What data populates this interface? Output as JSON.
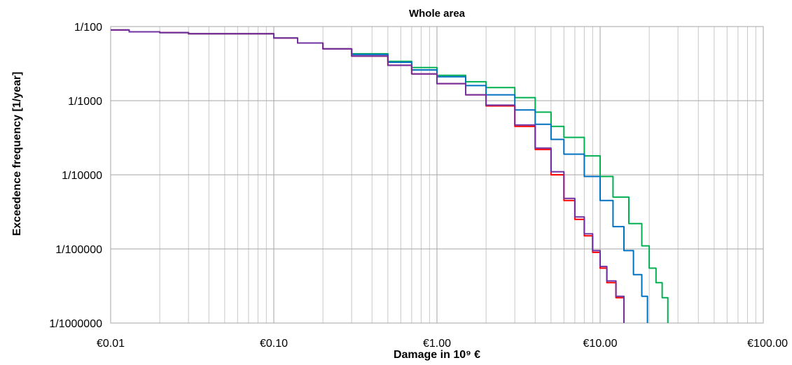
{
  "chart_data": {
    "type": "line",
    "title": "Whole area",
    "xlabel": "Damage in 10⁹ €",
    "ylabel": "Exceedence frequency [1/year]",
    "x_scale": "log",
    "y_scale": "log",
    "xlim": [
      0.01,
      100
    ],
    "ylim": [
      1e-06,
      0.01
    ],
    "x_ticks": [
      0.01,
      0.1,
      1,
      10,
      100
    ],
    "x_tick_labels": [
      "€0.01",
      "€0.10",
      "€1.00",
      "€10.00",
      "€100.00"
    ],
    "y_ticks": [
      0.01,
      0.001,
      0.0001,
      1e-05,
      1e-06
    ],
    "y_tick_labels": [
      "1/100",
      "1/1000",
      "1/10000",
      "1/100000",
      "1/1000000"
    ],
    "grid": true,
    "legend": "none",
    "series": [
      {
        "color": "#00b050",
        "points": [
          [
            0.01,
            0.009
          ],
          [
            0.013,
            0.0085
          ],
          [
            0.02,
            0.0083
          ],
          [
            0.03,
            0.008
          ],
          [
            0.05,
            0.008
          ],
          [
            0.09,
            0.008
          ],
          [
            0.1,
            0.007
          ],
          [
            0.14,
            0.006
          ],
          [
            0.2,
            0.005
          ],
          [
            0.3,
            0.0043
          ],
          [
            0.5,
            0.0034
          ],
          [
            0.7,
            0.0028
          ],
          [
            1.0,
            0.0022
          ],
          [
            1.5,
            0.0018
          ],
          [
            2.0,
            0.0015
          ],
          [
            3.0,
            0.0011
          ],
          [
            4.0,
            0.0007
          ],
          [
            5.0,
            0.00045
          ],
          [
            6.0,
            0.00032
          ],
          [
            8.0,
            0.00018
          ],
          [
            10.0,
            9.5e-05
          ],
          [
            12.0,
            5e-05
          ],
          [
            15.0,
            2.2e-05
          ],
          [
            18.0,
            1.1e-05
          ],
          [
            20.0,
            5.5e-06
          ],
          [
            22.0,
            3.5e-06
          ],
          [
            24.0,
            2.2e-06
          ],
          [
            26.0,
            1.5e-06
          ],
          [
            26.0,
            1e-06
          ]
        ]
      },
      {
        "color": "#0070c0",
        "points": [
          [
            0.01,
            0.009
          ],
          [
            0.013,
            0.0085
          ],
          [
            0.02,
            0.0083
          ],
          [
            0.03,
            0.008
          ],
          [
            0.05,
            0.008
          ],
          [
            0.09,
            0.008
          ],
          [
            0.1,
            0.007
          ],
          [
            0.14,
            0.006
          ],
          [
            0.2,
            0.005
          ],
          [
            0.3,
            0.0042
          ],
          [
            0.5,
            0.0033
          ],
          [
            0.7,
            0.0026
          ],
          [
            1.0,
            0.0021
          ],
          [
            1.5,
            0.0016
          ],
          [
            2.0,
            0.0012
          ],
          [
            3.0,
            0.00075
          ],
          [
            4.0,
            0.00048
          ],
          [
            5.0,
            0.0003
          ],
          [
            6.0,
            0.00019
          ],
          [
            8.0,
            9.5e-05
          ],
          [
            10.0,
            4.5e-05
          ],
          [
            12.0,
            2e-05
          ],
          [
            14.0,
            9.5e-06
          ],
          [
            16.0,
            4.5e-06
          ],
          [
            18.0,
            2.3e-06
          ],
          [
            19.5,
            1.5e-06
          ],
          [
            19.5,
            1e-06
          ]
        ]
      },
      {
        "color": "#ff0000",
        "points": [
          [
            0.01,
            0.009
          ],
          [
            0.013,
            0.0085
          ],
          [
            0.02,
            0.0083
          ],
          [
            0.03,
            0.008
          ],
          [
            0.05,
            0.008
          ],
          [
            0.09,
            0.008
          ],
          [
            0.1,
            0.007
          ],
          [
            0.14,
            0.006
          ],
          [
            0.2,
            0.005
          ],
          [
            0.3,
            0.004
          ],
          [
            0.5,
            0.003
          ],
          [
            0.7,
            0.0023
          ],
          [
            1.0,
            0.0017
          ],
          [
            1.5,
            0.0012
          ],
          [
            2.0,
            0.00085
          ],
          [
            3.0,
            0.00045
          ],
          [
            4.0,
            0.00022
          ],
          [
            5.0,
            0.0001
          ],
          [
            6.0,
            4.5e-05
          ],
          [
            7.0,
            2.5e-05
          ],
          [
            8.0,
            1.5e-05
          ],
          [
            9.0,
            9e-06
          ],
          [
            10.0,
            5.5e-06
          ],
          [
            11.0,
            3.5e-06
          ],
          [
            12.5,
            2.2e-06
          ],
          [
            14.0,
            1.5e-06
          ],
          [
            14.0,
            1e-06
          ]
        ]
      },
      {
        "color": "#7030a0",
        "points": [
          [
            0.01,
            0.009
          ],
          [
            0.013,
            0.0085
          ],
          [
            0.02,
            0.0083
          ],
          [
            0.03,
            0.008
          ],
          [
            0.05,
            0.008
          ],
          [
            0.09,
            0.008
          ],
          [
            0.1,
            0.007
          ],
          [
            0.14,
            0.006
          ],
          [
            0.2,
            0.005
          ],
          [
            0.3,
            0.004
          ],
          [
            0.5,
            0.003
          ],
          [
            0.7,
            0.0023
          ],
          [
            1.0,
            0.0017
          ],
          [
            1.5,
            0.0012
          ],
          [
            2.0,
            0.00087
          ],
          [
            3.0,
            0.00047
          ],
          [
            4.0,
            0.00023
          ],
          [
            5.0,
            0.00011
          ],
          [
            6.0,
            4.8e-05
          ],
          [
            7.0,
            2.7e-05
          ],
          [
            8.0,
            1.6e-05
          ],
          [
            9.0,
            9.5e-06
          ],
          [
            10.0,
            5.8e-06
          ],
          [
            11.0,
            3.7e-06
          ],
          [
            12.5,
            2.3e-06
          ],
          [
            14.0,
            1.5e-06
          ],
          [
            14.0,
            1e-06
          ]
        ]
      }
    ]
  }
}
